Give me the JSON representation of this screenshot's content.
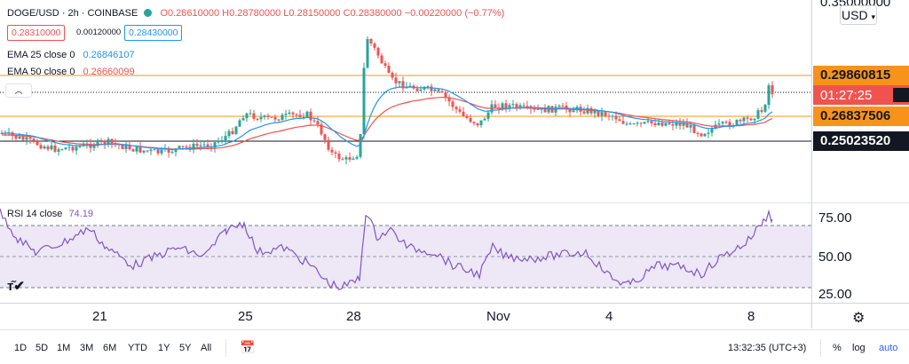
{
  "legend": {
    "symbol": "DOGE/USD · 2h · COINBASE",
    "open": "O0.28610000",
    "high": "H0.28780000",
    "low": "L0.28150000",
    "close": "C0.28380000",
    "change": "−0.00220000 (−0.77%)",
    "bid": "0.28310000",
    "spread": "0.00120000",
    "ask": "0.28430000",
    "ema25_label": "EMA 25 close 0",
    "ema25_value": "0.26846107",
    "ema50_label": "EMA 50 close 0",
    "ema50_value": "0.26660099"
  },
  "price_axis": {
    "top_label": "0.35000000",
    "currency": "USD",
    "h1": "0.29860815",
    "countdown": "01:27:25",
    "h2": "0.26837506",
    "h3": "0.25023520"
  },
  "rsi": {
    "label": "RSI 14 close",
    "value": "74.19",
    "ticks": [
      "75.00",
      "50.00",
      "25.00"
    ]
  },
  "time_axis": {
    "labels": [
      "21",
      "25",
      "28",
      "Nov",
      "4",
      "8"
    ]
  },
  "toolbar": {
    "ranges": [
      "1D",
      "5D",
      "1M",
      "3M",
      "6M",
      "YTD",
      "1Y",
      "5Y",
      "All"
    ],
    "clock": "13:32:35 (UTC+3)",
    "percent": "%",
    "log": "log",
    "auto": "auto"
  },
  "colors": {
    "up": "#26a69a",
    "down": "#ef5350",
    "ema25": "#2196f3",
    "ema50": "#ef5350",
    "orange_line": "#f7931a",
    "rsi_line": "#7e57c2",
    "rsi_band": "#ede7f6"
  }
}
